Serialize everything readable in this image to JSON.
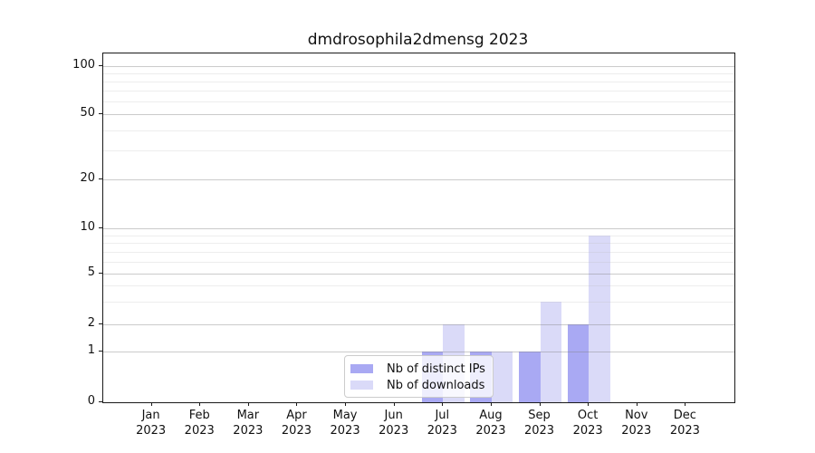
{
  "chart_data": {
    "type": "bar",
    "title": "dmdrosophila2dmensg 2023",
    "categories": [
      "Jan 2023",
      "Feb 2023",
      "Mar 2023",
      "Apr 2023",
      "May 2023",
      "Jun 2023",
      "Jul 2023",
      "Aug 2023",
      "Sep 2023",
      "Oct 2023",
      "Nov 2023",
      "Dec 2023"
    ],
    "x_tick_labels": [
      [
        "Jan",
        "2023"
      ],
      [
        "Feb",
        "2023"
      ],
      [
        "Mar",
        "2023"
      ],
      [
        "Apr",
        "2023"
      ],
      [
        "May",
        "2023"
      ],
      [
        "Jun",
        "2023"
      ],
      [
        "Jul",
        "2023"
      ],
      [
        "Aug",
        "2023"
      ],
      [
        "Sep",
        "2023"
      ],
      [
        "Oct",
        "2023"
      ],
      [
        "Nov",
        "2023"
      ],
      [
        "Dec",
        "2023"
      ]
    ],
    "series": [
      {
        "name": "Nb of distinct IPs",
        "color": "#a9a9f3",
        "values": [
          0,
          0,
          0,
          0,
          0,
          0,
          1,
          1,
          1,
          2,
          0,
          0
        ]
      },
      {
        "name": "Nb of downloads",
        "color": "#dadaf8",
        "values": [
          0,
          0,
          0,
          0,
          0,
          0,
          2,
          1,
          3,
          9,
          0,
          0
        ]
      }
    ],
    "y_axis": {
      "scale": "log-like (linear below 1)",
      "range": [
        0,
        100
      ],
      "major_ticks": [
        0,
        1,
        2,
        5,
        10,
        20,
        50,
        100
      ],
      "minor_ticks": [
        3,
        4,
        6,
        7,
        8,
        9,
        30,
        40,
        60,
        70,
        80,
        90
      ],
      "grid": true
    },
    "legend": {
      "location": "lower center",
      "entries": [
        "Nb of distinct IPs",
        "Nb of downloads"
      ]
    }
  },
  "colors": {
    "distinct_ips_bar": "#a9a9f3",
    "downloads_bar": "#dadaf8",
    "major_grid": "#c6c6c6",
    "minor_grid": "#ebebeb",
    "spine": "#1a1a1a",
    "text": "#111111",
    "background": "#ffffff",
    "legend_border": "#cccccc"
  }
}
